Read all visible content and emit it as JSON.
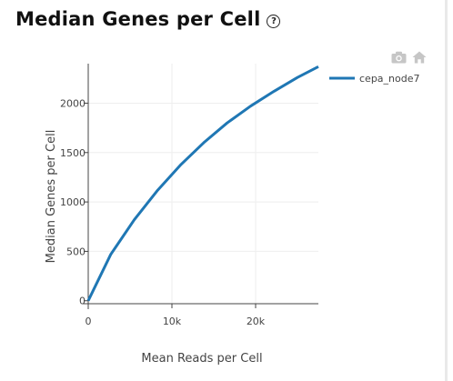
{
  "header": {
    "title": "Median Genes per Cell",
    "help_glyph": "?"
  },
  "toolbar": {
    "camera_icon": "camera-icon",
    "home_icon": "home-icon",
    "icon_color": "#c6c6c6"
  },
  "chart_data": {
    "type": "line",
    "xlabel": "Mean Reads per Cell",
    "ylabel": "Median Genes per Cell",
    "xlim": [
      0,
      27500
    ],
    "ylim": [
      -30,
      2400
    ],
    "x_ticks": [
      0,
      10000,
      20000
    ],
    "x_tick_labels": [
      "0",
      "10k",
      "20k"
    ],
    "y_ticks": [
      0,
      500,
      1000,
      1500,
      2000
    ],
    "y_tick_labels": [
      "0",
      "500",
      "1000",
      "1500",
      "2000"
    ],
    "grid": true,
    "legend_position": "top-right",
    "series": [
      {
        "name": "cepa_node7",
        "color": "#1f77b4",
        "x": [
          0,
          2700,
          5500,
          8300,
          11100,
          13800,
          16600,
          19400,
          22200,
          25000,
          27500
        ],
        "y": [
          0,
          470,
          820,
          1120,
          1380,
          1600,
          1800,
          1970,
          2120,
          2260,
          2370
        ]
      }
    ]
  }
}
